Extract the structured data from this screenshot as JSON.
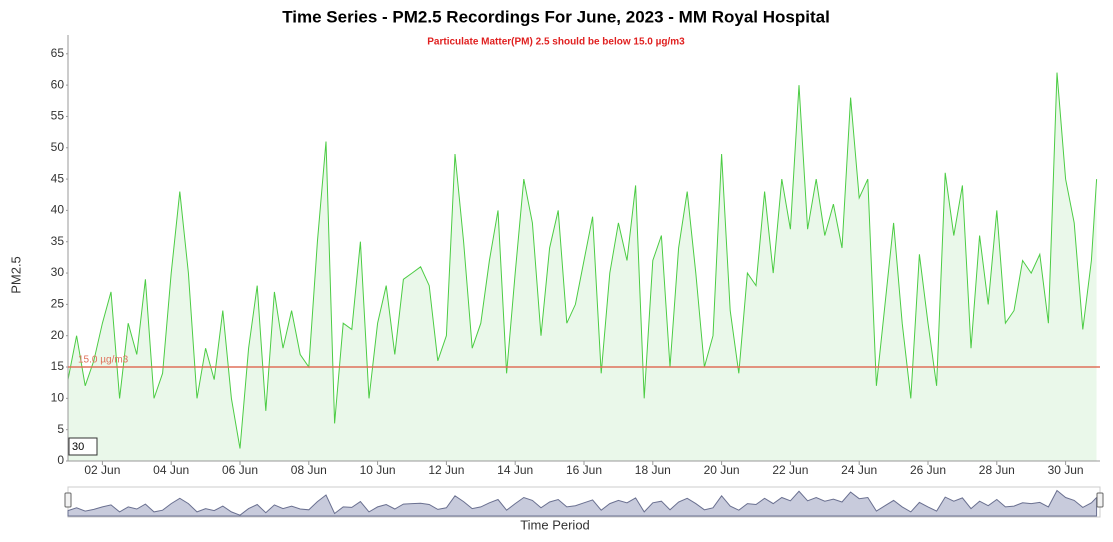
{
  "chart_data": {
    "type": "line",
    "title": "Time Series - PM2.5 Recordings For June, 2023 - MM Royal Hospital",
    "subtitle": "Particulate Matter(PM) 2.5 should be below 15.0 µg/m3",
    "y_label": "PM2.5",
    "x_label": "Time Period",
    "box_label": "30",
    "reference": {
      "value": 15,
      "label": "15.0 µg/m3",
      "color": "#e0705a"
    },
    "xlim": [
      1,
      31
    ],
    "xticks": [
      {
        "value": 2,
        "label": "02 Jun"
      },
      {
        "value": 4,
        "label": "04 Jun"
      },
      {
        "value": 6,
        "label": "06 Jun"
      },
      {
        "value": 8,
        "label": "08 Jun"
      },
      {
        "value": 10,
        "label": "10 Jun"
      },
      {
        "value": 12,
        "label": "12 Jun"
      },
      {
        "value": 14,
        "label": "14 Jun"
      },
      {
        "value": 16,
        "label": "16 Jun"
      },
      {
        "value": 18,
        "label": "18 Jun"
      },
      {
        "value": 20,
        "label": "20 Jun"
      },
      {
        "value": 22,
        "label": "22 Jun"
      },
      {
        "value": 24,
        "label": "24 Jun"
      },
      {
        "value": 26,
        "label": "26 Jun"
      },
      {
        "value": 28,
        "label": "28 Jun"
      },
      {
        "value": 30,
        "label": "30 Jun"
      }
    ],
    "ylim": [
      0,
      68
    ],
    "yticks": [
      0,
      5,
      10,
      15,
      20,
      25,
      30,
      35,
      40,
      45,
      50,
      55,
      60,
      65
    ],
    "x": [
      1,
      1.25,
      1.5,
      1.75,
      2,
      2.25,
      2.5,
      2.75,
      3,
      3.25,
      3.5,
      3.75,
      4,
      4.25,
      4.5,
      4.75,
      5,
      5.25,
      5.5,
      5.75,
      6,
      6.25,
      6.5,
      6.75,
      7,
      7.25,
      7.5,
      7.75,
      8,
      8.25,
      8.5,
      8.75,
      9,
      9.25,
      9.5,
      9.75,
      10,
      10.25,
      10.5,
      10.75,
      11,
      11.25,
      11.5,
      11.75,
      12,
      12.25,
      12.5,
      12.75,
      13,
      13.25,
      13.5,
      13.75,
      14,
      14.25,
      14.5,
      14.75,
      15,
      15.25,
      15.5,
      15.75,
      16,
      16.25,
      16.5,
      16.75,
      17,
      17.25,
      17.5,
      17.75,
      18,
      18.25,
      18.5,
      18.75,
      19,
      19.25,
      19.5,
      19.75,
      20,
      20.25,
      20.5,
      20.75,
      21,
      21.25,
      21.5,
      21.75,
      22,
      22.25,
      22.5,
      22.75,
      23,
      23.25,
      23.5,
      23.75,
      24,
      24.25,
      24.5,
      24.75,
      25,
      25.25,
      25.5,
      25.75,
      26,
      26.25,
      26.5,
      26.75,
      27,
      27.25,
      27.5,
      27.75,
      28,
      28.25,
      28.5,
      28.75,
      29,
      29.25,
      29.5,
      29.75,
      30,
      30.25,
      30.5,
      30.75,
      30.9
    ],
    "series": [
      {
        "name": "PM2.5",
        "color": "#4ccc44",
        "fill": "#eaf8ea",
        "values": [
          13,
          20,
          12,
          16,
          22,
          27,
          10,
          22,
          17,
          29,
          10,
          14,
          30,
          43,
          30,
          10,
          18,
          13,
          24,
          10,
          2,
          18,
          28,
          8,
          27,
          18,
          24,
          17,
          15,
          35,
          51,
          6,
          22,
          21,
          35,
          10,
          22,
          28,
          17,
          29,
          30,
          31,
          28,
          16,
          20,
          49,
          35,
          18,
          22,
          32,
          40,
          14,
          30,
          45,
          38,
          20,
          34,
          40,
          22,
          25,
          32,
          39,
          14,
          30,
          38,
          32,
          44,
          10,
          32,
          36,
          15,
          34,
          43,
          30,
          15,
          20,
          49,
          24,
          14,
          30,
          28,
          43,
          30,
          45,
          37,
          60,
          37,
          45,
          36,
          41,
          34,
          58,
          42,
          45,
          12,
          25,
          38,
          22,
          10,
          33,
          22,
          12,
          46,
          36,
          44,
          18,
          36,
          25,
          40,
          22,
          24,
          32,
          30,
          33,
          22,
          62,
          45,
          38,
          21,
          32,
          45
        ]
      }
    ]
  }
}
